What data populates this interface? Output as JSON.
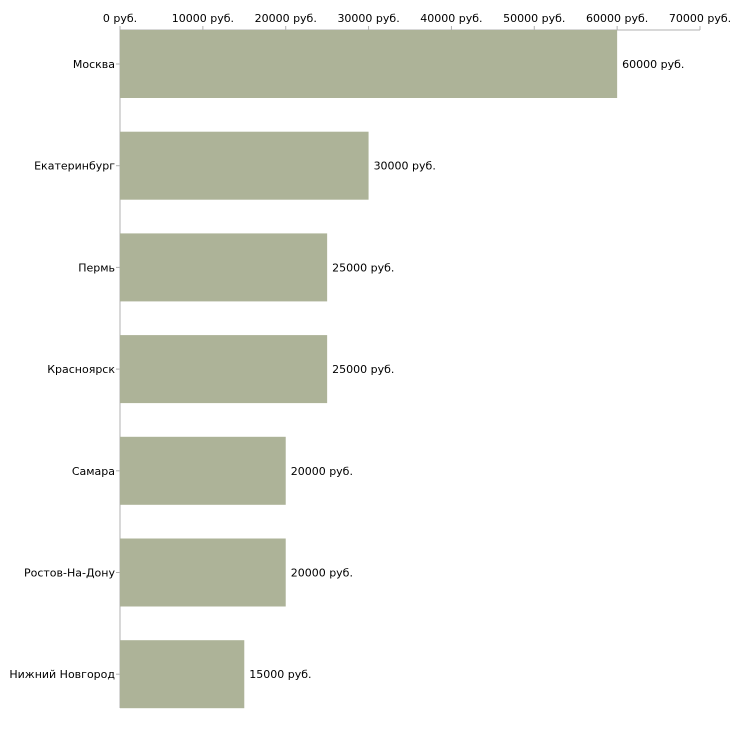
{
  "chart_data": {
    "type": "bar",
    "orientation": "horizontal",
    "title": "",
    "xlabel": "",
    "ylabel": "",
    "xlim": [
      0,
      70000
    ],
    "ticks": [
      0,
      10000,
      20000,
      30000,
      40000,
      50000,
      60000,
      70000
    ],
    "tick_labels": [
      "0 руб.",
      "10000 руб.",
      "20000 руб.",
      "30000 руб.",
      "40000 руб.",
      "50000 руб.",
      "60000 руб.",
      "70000 руб."
    ],
    "categories": [
      "Москва",
      "Екатеринбург",
      "Пермь",
      "Красноярск",
      "Самара",
      "Ростов-На-Дону",
      "Нижний Новгород"
    ],
    "values": [
      60000,
      30000,
      25000,
      25000,
      20000,
      20000,
      15000
    ],
    "value_labels": [
      "60000 руб.",
      "30000 руб.",
      "25000 руб.",
      "25000 руб.",
      "20000 руб.",
      "20000 руб.",
      "15000 руб."
    ],
    "grid": false,
    "legend": "none",
    "colors": {
      "bar": "#adb398",
      "axis": "#b0b0b0",
      "text": "#000000"
    }
  }
}
